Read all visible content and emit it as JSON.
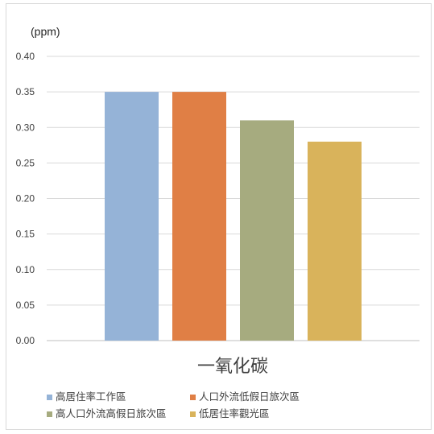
{
  "chart_data": {
    "type": "bar",
    "unit_label": "(ppm)",
    "categories": [
      "一氧化碳"
    ],
    "yticks": [
      "0.00",
      "0.05",
      "0.10",
      "0.15",
      "0.20",
      "0.25",
      "0.30",
      "0.35",
      "0.40"
    ],
    "ylim": [
      0,
      0.4
    ],
    "grid": true,
    "legend_position": "bottom",
    "series": [
      {
        "name": "高居住率工作區",
        "values": [
          0.35
        ],
        "color": "#95b3d7"
      },
      {
        "name": "人口外流低假日旅次區",
        "values": [
          0.35
        ],
        "color": "#e07f45"
      },
      {
        "name": "高人口外流高假日旅次區",
        "values": [
          0.31
        ],
        "color": "#a6ab7f"
      },
      {
        "name": "低居住率觀光區",
        "values": [
          0.28
        ],
        "color": "#d9b35b"
      }
    ]
  }
}
